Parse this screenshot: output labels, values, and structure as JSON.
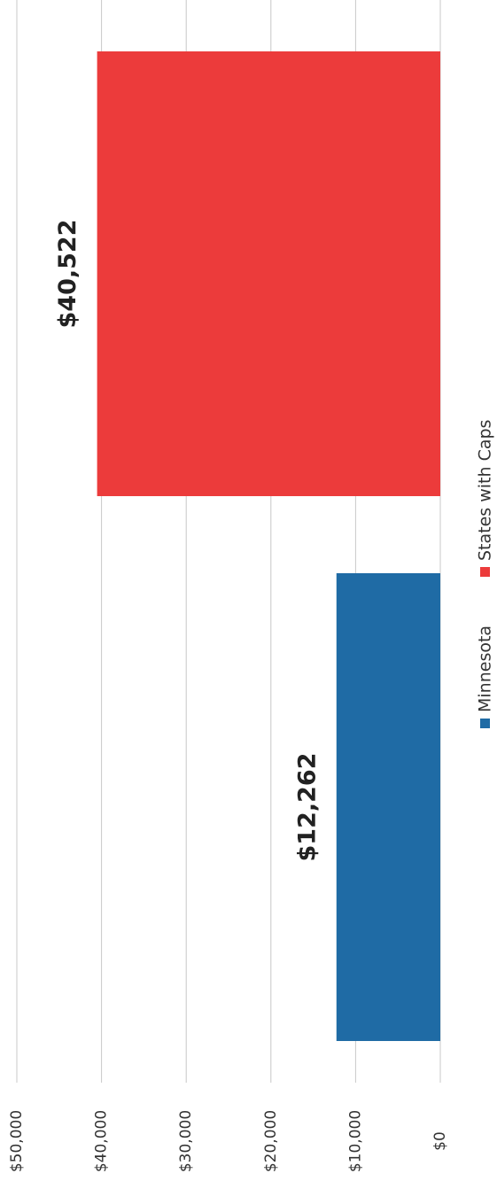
{
  "chart_data": {
    "type": "bar",
    "orientation": "rotated (values increase leftward, text reads bottom-to-top)",
    "categories": [
      "Minnesota",
      "States with Caps"
    ],
    "series": [
      {
        "name": "Minnesota",
        "values": [
          12262,
          null
        ]
      },
      {
        "name": "States with Caps",
        "values": [
          null,
          40522
        ]
      }
    ],
    "values": [
      12262,
      40522
    ],
    "data_labels": [
      "$12,262",
      "$40,522"
    ],
    "colors": [
      "#1f6ba5",
      "#ec3b3b"
    ],
    "axis_ticks": [
      "$0",
      "$10,000",
      "$20,000",
      "$30,000",
      "$40,000",
      "$50,000"
    ],
    "tick_values": [
      0,
      10000,
      20000,
      30000,
      40000,
      50000
    ],
    "ylim": [
      0,
      50000
    ],
    "grid": true,
    "legend_position": "right",
    "title": "",
    "xlabel": "",
    "ylabel": ""
  }
}
